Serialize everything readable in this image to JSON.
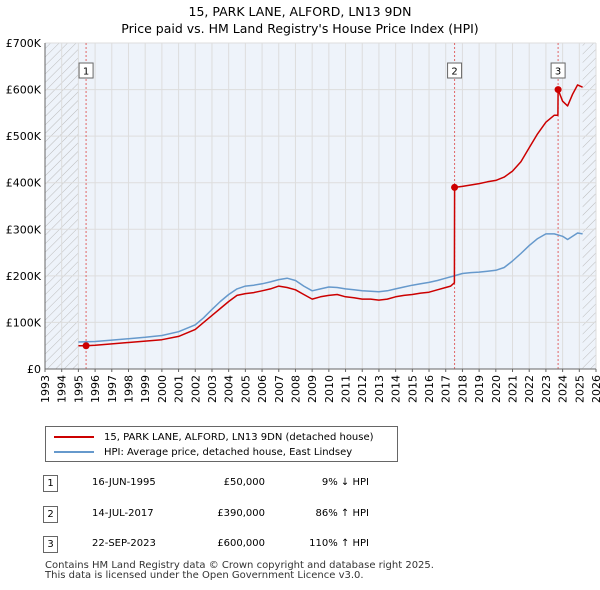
{
  "title": {
    "line1": "15, PARK LANE, ALFORD, LN13 9DN",
    "line2": "Price paid vs. HM Land Registry's House Price Index (HPI)"
  },
  "colors": {
    "price_line": "#cc0000",
    "hpi_line": "#6699cc",
    "marker_line": "#e06666",
    "hatch": "#bbbbbb",
    "grid": "#dddddd",
    "plot_bg": "#eef3fa"
  },
  "chart_data": {
    "type": "line",
    "x_range": [
      1993,
      2026
    ],
    "ylim": [
      0,
      700000
    ],
    "y_ticks": [
      {
        "value": 0,
        "label": "£0"
      },
      {
        "value": 100000,
        "label": "£100K"
      },
      {
        "value": 200000,
        "label": "£200K"
      },
      {
        "value": 300000,
        "label": "£300K"
      },
      {
        "value": 400000,
        "label": "£400K"
      },
      {
        "value": 500000,
        "label": "£500K"
      },
      {
        "value": 600000,
        "label": "£600K"
      },
      {
        "value": 700000,
        "label": "£700K"
      }
    ],
    "x_ticks": [
      "1993",
      "1994",
      "1995",
      "1996",
      "1997",
      "1998",
      "1999",
      "2000",
      "2001",
      "2002",
      "2003",
      "2004",
      "2005",
      "2006",
      "2007",
      "2008",
      "2009",
      "2010",
      "2011",
      "2012",
      "2013",
      "2014",
      "2015",
      "2016",
      "2017",
      "2018",
      "2019",
      "2020",
      "2021",
      "2022",
      "2023",
      "2024",
      "2025",
      "2026"
    ],
    "hatched_before": 1995.0,
    "hatched_after": 2025.2,
    "series": [
      {
        "name": "15, PARK LANE, ALFORD, LN13 9DN (detached house)",
        "color": "#cc0000",
        "points": [
          [
            1995.0,
            50000
          ],
          [
            1995.46,
            50000
          ],
          [
            1996.0,
            51000
          ],
          [
            1997.0,
            54000
          ],
          [
            1998.0,
            57000
          ],
          [
            1999.0,
            60000
          ],
          [
            2000.0,
            63000
          ],
          [
            2001.0,
            70000
          ],
          [
            2002.0,
            85000
          ],
          [
            2002.5,
            100000
          ],
          [
            2003.0,
            115000
          ],
          [
            2003.5,
            130000
          ],
          [
            2004.0,
            145000
          ],
          [
            2004.5,
            158000
          ],
          [
            2005.0,
            162000
          ],
          [
            2005.5,
            164000
          ],
          [
            2006.0,
            168000
          ],
          [
            2006.5,
            172000
          ],
          [
            2007.0,
            178000
          ],
          [
            2007.5,
            175000
          ],
          [
            2008.0,
            170000
          ],
          [
            2008.5,
            160000
          ],
          [
            2009.0,
            150000
          ],
          [
            2009.5,
            155000
          ],
          [
            2010.0,
            158000
          ],
          [
            2010.5,
            160000
          ],
          [
            2011.0,
            155000
          ],
          [
            2011.5,
            153000
          ],
          [
            2012.0,
            150000
          ],
          [
            2012.5,
            150000
          ],
          [
            2013.0,
            148000
          ],
          [
            2013.5,
            150000
          ],
          [
            2014.0,
            155000
          ],
          [
            2014.5,
            158000
          ],
          [
            2015.0,
            160000
          ],
          [
            2015.5,
            163000
          ],
          [
            2016.0,
            165000
          ],
          [
            2016.5,
            170000
          ],
          [
            2017.0,
            175000
          ],
          [
            2017.3,
            178000
          ],
          [
            2017.52,
            185000
          ],
          [
            2017.53,
            390000
          ],
          [
            2018.0,
            392000
          ],
          [
            2018.5,
            395000
          ],
          [
            2019.0,
            398000
          ],
          [
            2019.5,
            402000
          ],
          [
            2020.0,
            405000
          ],
          [
            2020.5,
            412000
          ],
          [
            2021.0,
            425000
          ],
          [
            2021.5,
            445000
          ],
          [
            2022.0,
            475000
          ],
          [
            2022.5,
            505000
          ],
          [
            2023.0,
            530000
          ],
          [
            2023.5,
            545000
          ],
          [
            2023.72,
            545000
          ],
          [
            2023.73,
            600000
          ],
          [
            2024.0,
            575000
          ],
          [
            2024.3,
            565000
          ],
          [
            2024.6,
            590000
          ],
          [
            2024.9,
            610000
          ],
          [
            2025.2,
            605000
          ]
        ]
      },
      {
        "name": "HPI: Average price, detached house, East Lindsey",
        "color": "#6699cc",
        "points": [
          [
            1995.0,
            58000
          ],
          [
            1996.0,
            59000
          ],
          [
            1997.0,
            62000
          ],
          [
            1998.0,
            65000
          ],
          [
            1999.0,
            68000
          ],
          [
            2000.0,
            72000
          ],
          [
            2001.0,
            80000
          ],
          [
            2002.0,
            95000
          ],
          [
            2002.5,
            110000
          ],
          [
            2003.0,
            128000
          ],
          [
            2003.5,
            145000
          ],
          [
            2004.0,
            160000
          ],
          [
            2004.5,
            172000
          ],
          [
            2005.0,
            178000
          ],
          [
            2005.5,
            180000
          ],
          [
            2006.0,
            183000
          ],
          [
            2006.5,
            187000
          ],
          [
            2007.0,
            192000
          ],
          [
            2007.5,
            195000
          ],
          [
            2008.0,
            190000
          ],
          [
            2008.5,
            178000
          ],
          [
            2009.0,
            168000
          ],
          [
            2009.5,
            172000
          ],
          [
            2010.0,
            176000
          ],
          [
            2010.5,
            175000
          ],
          [
            2011.0,
            172000
          ],
          [
            2011.5,
            170000
          ],
          [
            2012.0,
            168000
          ],
          [
            2012.5,
            167000
          ],
          [
            2013.0,
            166000
          ],
          [
            2013.5,
            168000
          ],
          [
            2014.0,
            172000
          ],
          [
            2014.5,
            176000
          ],
          [
            2015.0,
            180000
          ],
          [
            2015.5,
            183000
          ],
          [
            2016.0,
            186000
          ],
          [
            2016.5,
            190000
          ],
          [
            2017.0,
            195000
          ],
          [
            2017.5,
            200000
          ],
          [
            2018.0,
            205000
          ],
          [
            2018.5,
            207000
          ],
          [
            2019.0,
            208000
          ],
          [
            2019.5,
            210000
          ],
          [
            2020.0,
            212000
          ],
          [
            2020.5,
            218000
          ],
          [
            2021.0,
            232000
          ],
          [
            2021.5,
            248000
          ],
          [
            2022.0,
            265000
          ],
          [
            2022.5,
            280000
          ],
          [
            2023.0,
            290000
          ],
          [
            2023.5,
            290000
          ],
          [
            2024.0,
            285000
          ],
          [
            2024.3,
            278000
          ],
          [
            2024.6,
            285000
          ],
          [
            2024.9,
            292000
          ],
          [
            2025.2,
            290000
          ]
        ]
      }
    ],
    "sales": [
      {
        "id": "1",
        "x": 1995.46,
        "price": 50000,
        "date": "16-JUN-1995",
        "price_label": "£50,000",
        "hpi": "9% ↓ HPI"
      },
      {
        "id": "2",
        "x": 2017.53,
        "price": 390000,
        "date": "14-JUL-2017",
        "price_label": "£390,000",
        "hpi": "86% ↑ HPI"
      },
      {
        "id": "3",
        "x": 2023.73,
        "price": 600000,
        "date": "22-SEP-2023",
        "price_label": "£600,000",
        "hpi": "110% ↑ HPI"
      }
    ]
  },
  "legend": {
    "price_label": "15, PARK LANE, ALFORD, LN13 9DN (detached house)",
    "hpi_label": "HPI: Average price, detached house, East Lindsey"
  },
  "footer": {
    "line1": "Contains HM Land Registry data © Crown copyright and database right 2025.",
    "line2": "This data is licensed under the Open Government Licence v3.0."
  }
}
